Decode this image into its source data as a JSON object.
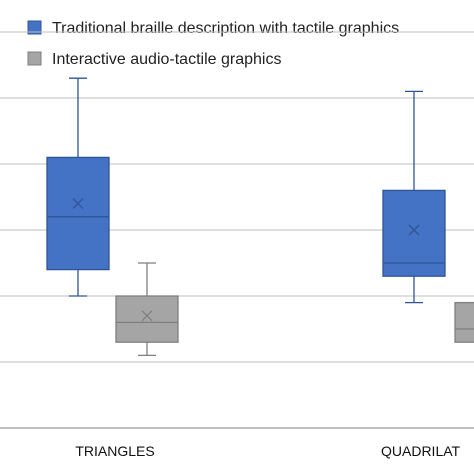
{
  "chart_data": {
    "type": "box",
    "title": "",
    "xlabel": "",
    "ylabel": "",
    "grid": true,
    "legend": "top-left",
    "categories": [
      "TRIANGLES",
      "QUADRILAT"
    ],
    "series": [
      {
        "name": "Traditional braille description with tactile graphics",
        "color": "#4472C4",
        "boxes": [
          {
            "whisker_low": 2.0,
            "q1": 2.4,
            "median": 3.2,
            "q3": 4.1,
            "whisker_high": 5.3,
            "mean": 3.4
          },
          {
            "whisker_low": 1.9,
            "q1": 2.3,
            "median": 2.5,
            "q3": 3.6,
            "whisker_high": 5.1,
            "mean": 3.0
          }
        ]
      },
      {
        "name": "Interactive audio-tactile graphics",
        "color": "#A5A5A5",
        "boxes": [
          {
            "whisker_low": 1.1,
            "q1": 1.3,
            "median": 1.6,
            "q3": 2.0,
            "whisker_high": 2.5,
            "mean": 1.7
          },
          {
            "whisker_low": null,
            "q1": 1.3,
            "median": 1.5,
            "q3": 1.9,
            "whisker_high": null,
            "mean": null
          }
        ]
      }
    ],
    "ylim": [
      0,
      6
    ],
    "gridlines": [
      1,
      2,
      3,
      4,
      5,
      6
    ]
  }
}
